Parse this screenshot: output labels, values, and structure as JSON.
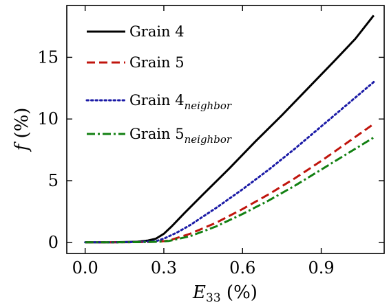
{
  "chart_data": {
    "type": "line",
    "title": "",
    "xlabel": {
      "main": "E",
      "sub": "33",
      "unit": " (%)"
    },
    "ylabel": {
      "main": "f",
      "unit": " (%)"
    },
    "xlim": [
      -0.07,
      1.14
    ],
    "ylim": [
      -0.9,
      19.2
    ],
    "xticks": [
      0.0,
      0.3,
      0.6,
      0.9
    ],
    "xtick_labels": [
      "0.0",
      "0.3",
      "0.6",
      "0.9"
    ],
    "yticks": [
      0,
      5,
      10,
      15
    ],
    "ytick_labels": [
      "0",
      "5",
      "10",
      "15"
    ],
    "grid": false,
    "legend_position": "top-left",
    "series": [
      {
        "name": "Grain 4",
        "name_main": "Grain 4",
        "name_sub": "",
        "color": "#000000",
        "dash": "solid",
        "x": [
          0.0,
          0.1,
          0.2,
          0.24,
          0.27,
          0.3,
          0.33,
          0.38,
          0.45,
          0.55,
          0.65,
          0.75,
          0.85,
          0.95,
          1.03,
          1.1
        ],
        "y": [
          0.0,
          0.0,
          0.05,
          0.15,
          0.3,
          0.7,
          1.3,
          2.4,
          3.9,
          6.0,
          8.2,
          10.3,
          12.5,
          14.7,
          16.5,
          18.4
        ]
      },
      {
        "name": "Grain 5",
        "name_main": "Grain 5",
        "name_sub": "",
        "color": "#c0140c",
        "dash": "dashed",
        "x": [
          0.0,
          0.1,
          0.2,
          0.28,
          0.32,
          0.4,
          0.5,
          0.6,
          0.7,
          0.8,
          0.9,
          1.0,
          1.1
        ],
        "y": [
          0.0,
          0.0,
          0.02,
          0.05,
          0.15,
          0.7,
          1.6,
          2.7,
          3.9,
          5.2,
          6.6,
          8.1,
          9.6
        ]
      },
      {
        "name": "Grain 4neighbor",
        "name_main": "Grain 4",
        "name_sub": "neighbor",
        "color": "#1a1aa6",
        "dash": "dotted",
        "x": [
          0.0,
          0.1,
          0.2,
          0.27,
          0.3,
          0.35,
          0.4,
          0.5,
          0.6,
          0.7,
          0.8,
          0.9,
          1.0,
          1.1
        ],
        "y": [
          0.0,
          0.0,
          0.03,
          0.1,
          0.3,
          0.8,
          1.4,
          2.8,
          4.3,
          5.9,
          7.6,
          9.4,
          11.2,
          13.0
        ]
      },
      {
        "name": "Grain 5neighbor",
        "name_main": "Grain 5",
        "name_sub": "neighbor",
        "color": "#128012",
        "dash": "dashdot",
        "x": [
          0.0,
          0.1,
          0.2,
          0.28,
          0.32,
          0.4,
          0.5,
          0.6,
          0.7,
          0.8,
          0.9,
          1.0,
          1.1
        ],
        "y": [
          0.0,
          0.0,
          0.02,
          0.05,
          0.12,
          0.5,
          1.3,
          2.3,
          3.4,
          4.6,
          5.9,
          7.2,
          8.5
        ]
      }
    ]
  }
}
